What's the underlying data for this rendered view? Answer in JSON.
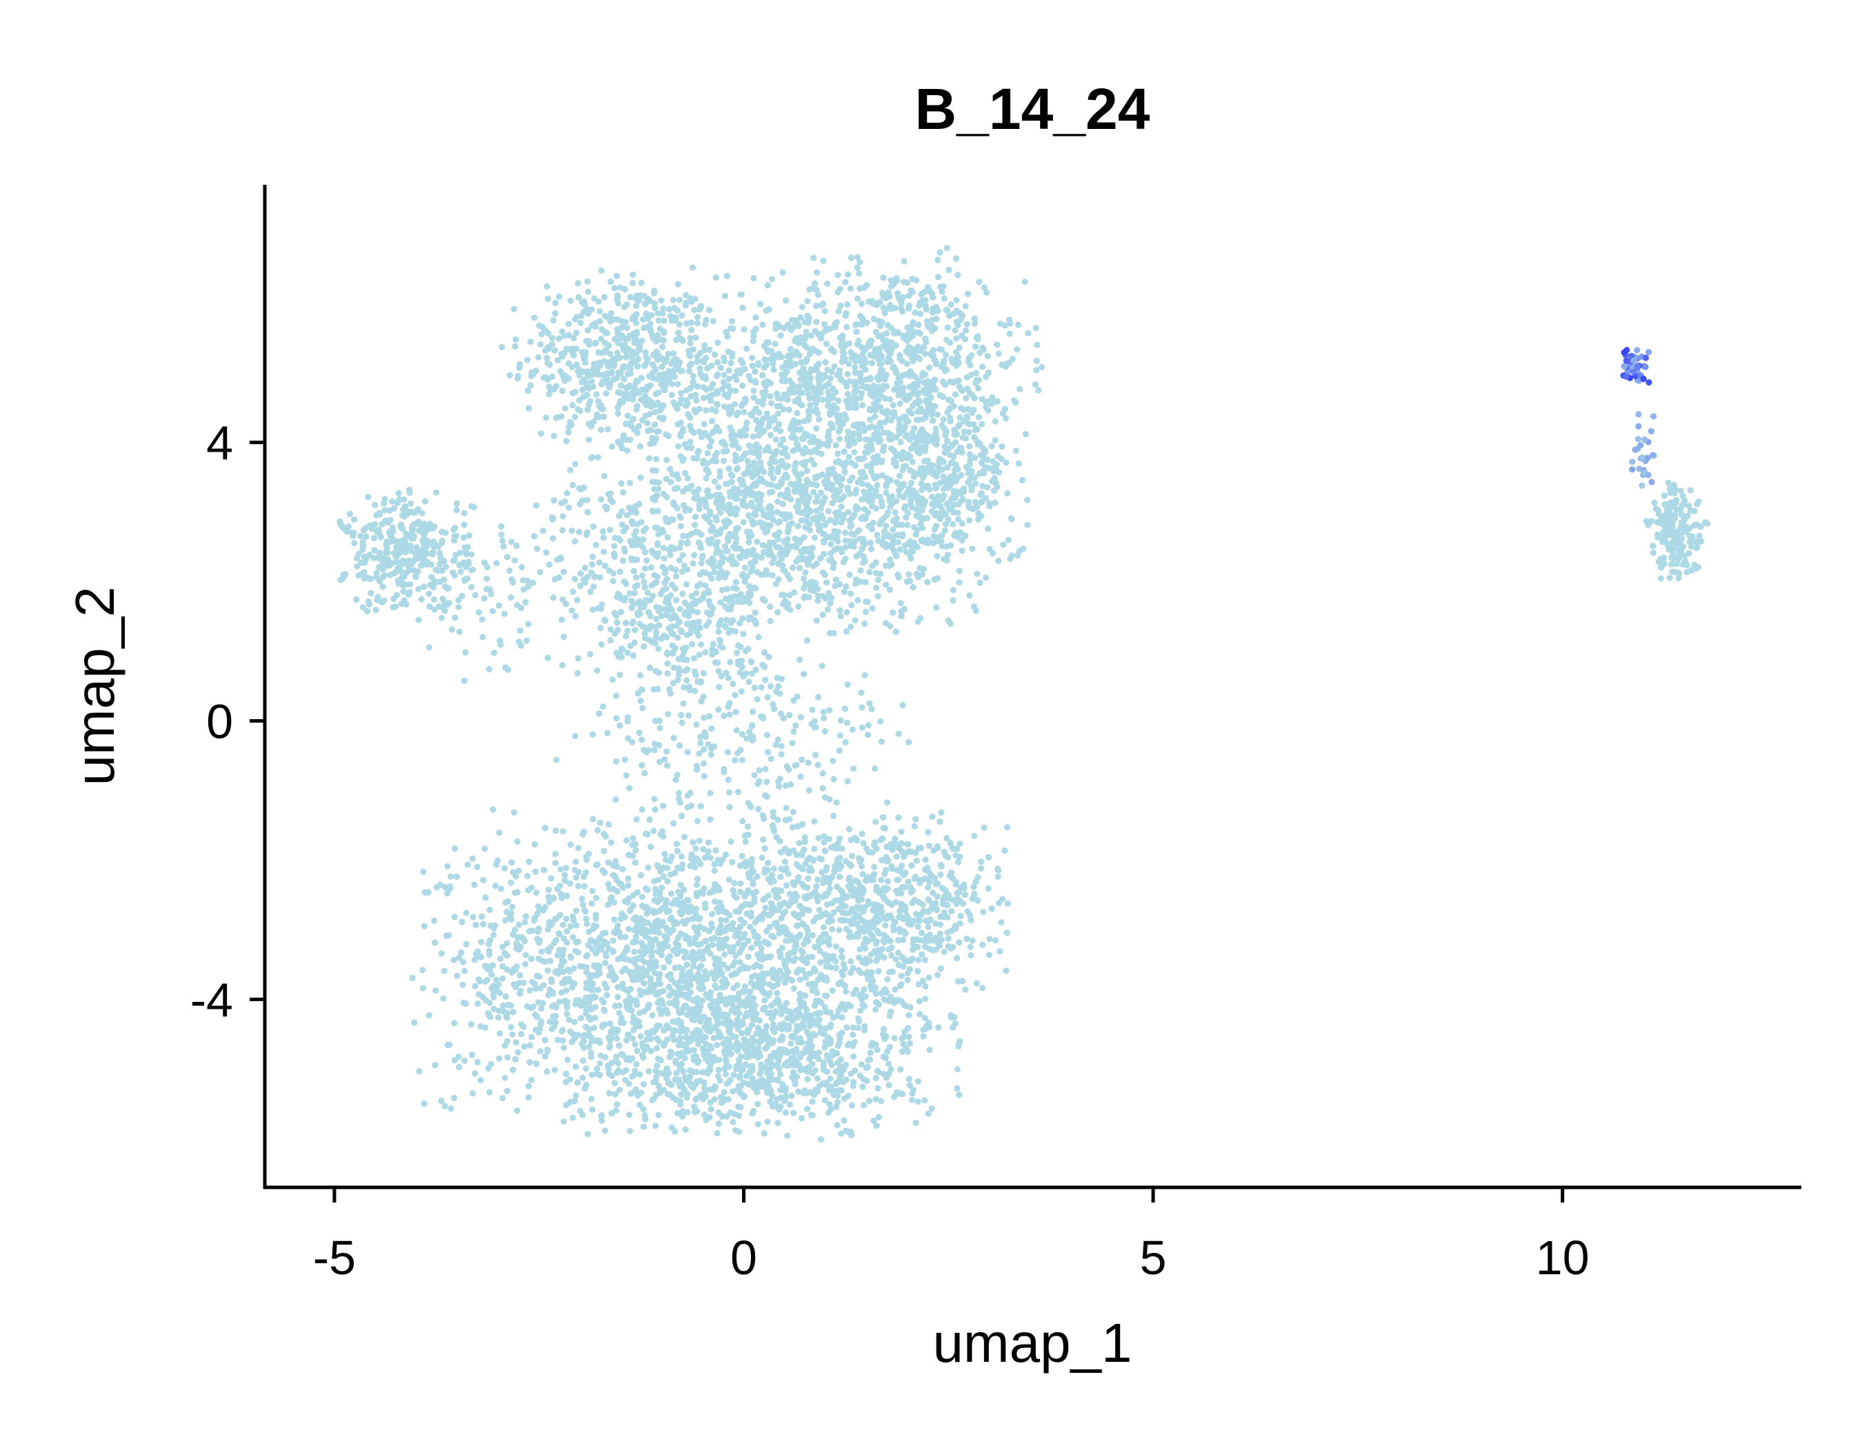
{
  "chart_data": {
    "type": "scatter",
    "title": "B_14_24",
    "xlabel": "umap_1",
    "ylabel": "umap_2",
    "xlim": [
      -5.85,
      12.9
    ],
    "ylim": [
      -6.7,
      7.7
    ],
    "xticks": [
      -5,
      0,
      5,
      10
    ],
    "xtick_labels": [
      "-5",
      "0",
      "5",
      "10"
    ],
    "yticks": [
      -4,
      0,
      4
    ],
    "ytick_labels": [
      "-4",
      "0",
      "4"
    ],
    "grid": false,
    "legend": "none",
    "colors": {
      "low": "#ADD8E6",
      "high": "#0000FF"
    },
    "clusters": [
      {
        "cx": -1.5,
        "cy": 5.2,
        "sx": 0.6,
        "sy": 0.6,
        "n": 500,
        "expr": 0
      },
      {
        "cx": 1.8,
        "cy": 5.2,
        "sx": 0.8,
        "sy": 0.7,
        "n": 650,
        "expr": 0
      },
      {
        "cx": 0.3,
        "cy": 4.8,
        "sx": 0.9,
        "sy": 0.6,
        "n": 450,
        "expr": 0
      },
      {
        "cx": 0.5,
        "cy": 2.9,
        "sx": 1.3,
        "sy": 0.75,
        "n": 1300,
        "expr": 0
      },
      {
        "cx": 2.3,
        "cy": 3.6,
        "sx": 0.5,
        "sy": 0.6,
        "n": 350,
        "expr": 0
      },
      {
        "cx": -0.8,
        "cy": 1.4,
        "sx": 0.5,
        "sy": 0.5,
        "n": 250,
        "expr": 0
      },
      {
        "cx": -4.1,
        "cy": 2.4,
        "sx": 0.38,
        "sy": 0.42,
        "n": 330,
        "expr": 0
      },
      {
        "cx": -2.7,
        "cy": 1.8,
        "sx": 0.7,
        "sy": 0.6,
        "n": 120,
        "expr": 0
      },
      {
        "cx": 0.0,
        "cy": -0.3,
        "sx": 1.0,
        "sy": 0.7,
        "n": 260,
        "expr": 0
      },
      {
        "cx": -0.6,
        "cy": -3.6,
        "sx": 1.5,
        "sy": 1.05,
        "n": 2300,
        "expr": 0
      },
      {
        "cx": 1.8,
        "cy": -2.6,
        "sx": 0.7,
        "sy": 0.55,
        "n": 450,
        "expr": 0
      },
      {
        "cx": 0.2,
        "cy": -4.9,
        "sx": 0.9,
        "sy": 0.45,
        "n": 400,
        "expr": 0
      },
      {
        "cx": 11.4,
        "cy": 2.7,
        "sx": 0.17,
        "sy": 0.33,
        "n": 170,
        "expr": 0
      },
      {
        "cx": 11.0,
        "cy": 3.9,
        "sx": 0.08,
        "sy": 0.3,
        "n": 25,
        "expr": 0.15
      },
      {
        "cx": 10.9,
        "cy": 5.1,
        "sx": 0.08,
        "sy": 0.15,
        "n": 40,
        "expr": 0.45
      }
    ]
  }
}
